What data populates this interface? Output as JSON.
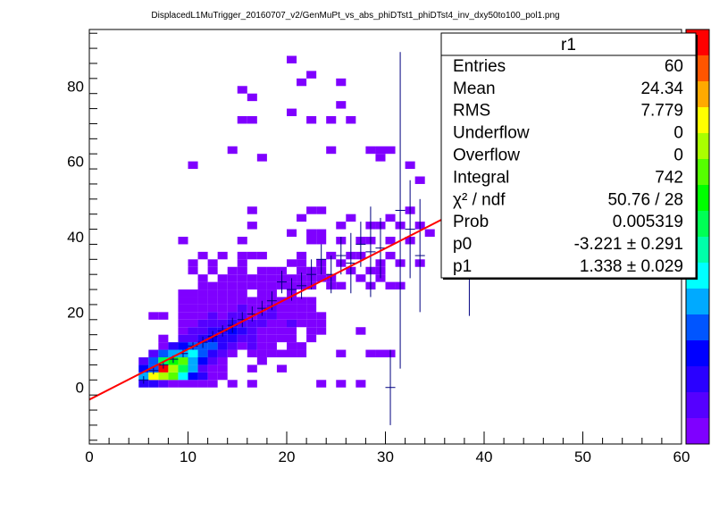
{
  "title": "DisplacedL1MuTrigger_20160707_v2/GenMuPt_vs_abs_phiDTst1_phiDTst4_inv_dxy50to100_pol1.png",
  "stats": {
    "name": "r1",
    "rows": [
      {
        "label": "Entries",
        "value": "60"
      },
      {
        "label": "Mean",
        "value": "24.34"
      },
      {
        "label": "RMS",
        "value": "7.779"
      },
      {
        "label": "Underflow",
        "value": "0"
      },
      {
        "label": "Overflow",
        "value": "0"
      },
      {
        "label": "Integral",
        "value": "742"
      },
      {
        "label": "χ² / ndf",
        "value": "50.76 / 28"
      },
      {
        "label": "Prob",
        "value": "0.005319"
      },
      {
        "label": "p0",
        "value": "-3.221 ± 0.291"
      },
      {
        "label": "p1",
        "value": "1.338 ± 0.029"
      }
    ]
  },
  "colors": {
    "palette": [
      "#7f00ff",
      "#5500ff",
      "#2a00ff",
      "#0000ff",
      "#0055ff",
      "#00aaff",
      "#00ffff",
      "#00ffaa",
      "#00ff55",
      "#00ff00",
      "#55ff00",
      "#aaff00",
      "#ffff00",
      "#ffaa00",
      "#ff5500",
      "#ff0000"
    ],
    "fit": "#ff0000",
    "profile": "#000080"
  },
  "chart_data": {
    "type": "heatmap",
    "title": "DisplacedL1MuTrigger_20160707_v2/GenMuPt_vs_abs_phiDTst1_phiDTst4_inv_dxy50to100_pol1.png",
    "xlabel": "",
    "ylabel": "",
    "xlim": [
      0,
      60
    ],
    "ylim": [
      -15,
      95
    ],
    "xticks": [
      0,
      10,
      20,
      30,
      40,
      50,
      60
    ],
    "yticks": [
      0,
      20,
      40,
      60,
      80
    ],
    "bin_width": [
      1,
      2
    ],
    "cells": [
      [
        5,
        1,
        3
      ],
      [
        6,
        1,
        3
      ],
      [
        7,
        1,
        2
      ],
      [
        8,
        1,
        1
      ],
      [
        9,
        1,
        1
      ],
      [
        10,
        1,
        1
      ],
      [
        11,
        1,
        1
      ],
      [
        12,
        1,
        1
      ],
      [
        14,
        1,
        1
      ],
      [
        16,
        1,
        1
      ],
      [
        23,
        1,
        1
      ],
      [
        25,
        1,
        1
      ],
      [
        27,
        1,
        1
      ],
      [
        5,
        3,
        6
      ],
      [
        6,
        3,
        12
      ],
      [
        7,
        3,
        11
      ],
      [
        8,
        3,
        10
      ],
      [
        9,
        3,
        7
      ],
      [
        10,
        3,
        4
      ],
      [
        11,
        3,
        3
      ],
      [
        12,
        3,
        1
      ],
      [
        13,
        3,
        1
      ],
      [
        5,
        5,
        4
      ],
      [
        6,
        5,
        8
      ],
      [
        7,
        5,
        15
      ],
      [
        8,
        5,
        11
      ],
      [
        9,
        5,
        8
      ],
      [
        10,
        5,
        6
      ],
      [
        11,
        5,
        2
      ],
      [
        12,
        5,
        1
      ],
      [
        13,
        5,
        1
      ],
      [
        16,
        5,
        1
      ],
      [
        19,
        5,
        1
      ],
      [
        5,
        7,
        2
      ],
      [
        6,
        5,
        5
      ],
      [
        6,
        7,
        5
      ],
      [
        7,
        7,
        8
      ],
      [
        8,
        7,
        9
      ],
      [
        9,
        7,
        10
      ],
      [
        10,
        7,
        6
      ],
      [
        11,
        7,
        4
      ],
      [
        12,
        7,
        2
      ],
      [
        13,
        7,
        1
      ],
      [
        17,
        7,
        1
      ],
      [
        6,
        9,
        2
      ],
      [
        7,
        9,
        5
      ],
      [
        8,
        9,
        6
      ],
      [
        9,
        9,
        6
      ],
      [
        10,
        9,
        7
      ],
      [
        11,
        9,
        5
      ],
      [
        12,
        9,
        3
      ],
      [
        13,
        9,
        2
      ],
      [
        14,
        9,
        1
      ],
      [
        16,
        9,
        1
      ],
      [
        17,
        9,
        1
      ],
      [
        18,
        9,
        1
      ],
      [
        19,
        9,
        1
      ],
      [
        20,
        9,
        1
      ],
      [
        21,
        9,
        1
      ],
      [
        25,
        9,
        1
      ],
      [
        28,
        9,
        1
      ],
      [
        29,
        9,
        1
      ],
      [
        30,
        9,
        1
      ],
      [
        7,
        11,
        1
      ],
      [
        8,
        11,
        3
      ],
      [
        9,
        11,
        4
      ],
      [
        10,
        11,
        5
      ],
      [
        11,
        11,
        5
      ],
      [
        12,
        11,
        5
      ],
      [
        13,
        11,
        3
      ],
      [
        14,
        11,
        2
      ],
      [
        15,
        11,
        1
      ],
      [
        16,
        11,
        2
      ],
      [
        17,
        11,
        1
      ],
      [
        18,
        11,
        1
      ],
      [
        20,
        11,
        1
      ],
      [
        21,
        11,
        1
      ],
      [
        7,
        13,
        1
      ],
      [
        9,
        13,
        2
      ],
      [
        10,
        13,
        2
      ],
      [
        11,
        13,
        3
      ],
      [
        12,
        13,
        4
      ],
      [
        13,
        13,
        3
      ],
      [
        14,
        13,
        3
      ],
      [
        15,
        13,
        2
      ],
      [
        16,
        13,
        2
      ],
      [
        17,
        13,
        1
      ],
      [
        18,
        13,
        1
      ],
      [
        19,
        13,
        1
      ],
      [
        20,
        13,
        1
      ],
      [
        22,
        13,
        1
      ],
      [
        9,
        15,
        1
      ],
      [
        10,
        15,
        2
      ],
      [
        11,
        15,
        2
      ],
      [
        12,
        15,
        3
      ],
      [
        13,
        15,
        3
      ],
      [
        14,
        15,
        4
      ],
      [
        15,
        15,
        3
      ],
      [
        16,
        15,
        2
      ],
      [
        17,
        15,
        1
      ],
      [
        18,
        15,
        1
      ],
      [
        19,
        15,
        1
      ],
      [
        20,
        15,
        1
      ],
      [
        22,
        15,
        1
      ],
      [
        23,
        15,
        1
      ],
      [
        27,
        15,
        1
      ],
      [
        6,
        19,
        1
      ],
      [
        7,
        19,
        1
      ],
      [
        9,
        17,
        1
      ],
      [
        10,
        17,
        1
      ],
      [
        11,
        17,
        2
      ],
      [
        12,
        17,
        2
      ],
      [
        13,
        17,
        2
      ],
      [
        14,
        17,
        3
      ],
      [
        15,
        17,
        2
      ],
      [
        16,
        17,
        2
      ],
      [
        17,
        17,
        2
      ],
      [
        18,
        17,
        1
      ],
      [
        19,
        17,
        1
      ],
      [
        20,
        17,
        2
      ],
      [
        21,
        17,
        1
      ],
      [
        22,
        17,
        1
      ],
      [
        23,
        17,
        1
      ],
      [
        9,
        19,
        1
      ],
      [
        10,
        19,
        1
      ],
      [
        11,
        19,
        1
      ],
      [
        12,
        19,
        2
      ],
      [
        13,
        19,
        1
      ],
      [
        14,
        19,
        2
      ],
      [
        15,
        19,
        2
      ],
      [
        16,
        19,
        1
      ],
      [
        17,
        19,
        2
      ],
      [
        18,
        19,
        2
      ],
      [
        19,
        19,
        1
      ],
      [
        20,
        19,
        1
      ],
      [
        21,
        19,
        1
      ],
      [
        22,
        19,
        1
      ],
      [
        23,
        19,
        1
      ],
      [
        9,
        21,
        1
      ],
      [
        10,
        21,
        1
      ],
      [
        11,
        21,
        1
      ],
      [
        12,
        21,
        1
      ],
      [
        13,
        21,
        1
      ],
      [
        14,
        21,
        1
      ],
      [
        15,
        21,
        2
      ],
      [
        16,
        21,
        1
      ],
      [
        17,
        21,
        1
      ],
      [
        18,
        21,
        2
      ],
      [
        19,
        21,
        1
      ],
      [
        20,
        21,
        1
      ],
      [
        21,
        21,
        1
      ],
      [
        22,
        21,
        1
      ],
      [
        9,
        23,
        1
      ],
      [
        10,
        23,
        1
      ],
      [
        11,
        23,
        1
      ],
      [
        12,
        23,
        1
      ],
      [
        13,
        23,
        1
      ],
      [
        14,
        23,
        1
      ],
      [
        15,
        23,
        1
      ],
      [
        16,
        23,
        1
      ],
      [
        17,
        23,
        1
      ],
      [
        18,
        23,
        1
      ],
      [
        19,
        23,
        1
      ],
      [
        20,
        23,
        1
      ],
      [
        21,
        23,
        1
      ],
      [
        22,
        23,
        1
      ],
      [
        9,
        25,
        1
      ],
      [
        10,
        25,
        1
      ],
      [
        11,
        25,
        1
      ],
      [
        12,
        25,
        1
      ],
      [
        13,
        25,
        1
      ],
      [
        14,
        25,
        1
      ],
      [
        15,
        25,
        1
      ],
      [
        17,
        25,
        1
      ],
      [
        18,
        25,
        1
      ],
      [
        20,
        25,
        1
      ],
      [
        11,
        27,
        1
      ],
      [
        12,
        27,
        1
      ],
      [
        13,
        27,
        1
      ],
      [
        14,
        27,
        1
      ],
      [
        15,
        27,
        1
      ],
      [
        16,
        27,
        1
      ],
      [
        17,
        27,
        1
      ],
      [
        18,
        27,
        1
      ],
      [
        19,
        27,
        1
      ],
      [
        20,
        27,
        1
      ],
      [
        21,
        27,
        1
      ],
      [
        22,
        27,
        1
      ],
      [
        24,
        27,
        1
      ],
      [
        25,
        27,
        1
      ],
      [
        28,
        27,
        1
      ],
      [
        30,
        27,
        1
      ],
      [
        31,
        27,
        1
      ],
      [
        11,
        29,
        1
      ],
      [
        13,
        29,
        1
      ],
      [
        14,
        29,
        1
      ],
      [
        15,
        29,
        1
      ],
      [
        16,
        29,
        1
      ],
      [
        17,
        29,
        1
      ],
      [
        18,
        29,
        1
      ],
      [
        19,
        29,
        1
      ],
      [
        20,
        29,
        1
      ],
      [
        21,
        29,
        1
      ],
      [
        22,
        29,
        1
      ],
      [
        23,
        29,
        1
      ],
      [
        24,
        29,
        1
      ],
      [
        27,
        29,
        1
      ],
      [
        29,
        29,
        1
      ],
      [
        10,
        31,
        1
      ],
      [
        12,
        31,
        1
      ],
      [
        14,
        31,
        1
      ],
      [
        15,
        31,
        1
      ],
      [
        17,
        31,
        1
      ],
      [
        18,
        31,
        1
      ],
      [
        19,
        31,
        1
      ],
      [
        21,
        31,
        1
      ],
      [
        22,
        31,
        1
      ],
      [
        23,
        31,
        1
      ],
      [
        26,
        31,
        1
      ],
      [
        28,
        31,
        1
      ],
      [
        29,
        31,
        1
      ],
      [
        10,
        33,
        1
      ],
      [
        12,
        33,
        1
      ],
      [
        15,
        33,
        1
      ],
      [
        20,
        33,
        1
      ],
      [
        21,
        33,
        1
      ],
      [
        23,
        33,
        1
      ],
      [
        25,
        33,
        1
      ],
      [
        29,
        33,
        1
      ],
      [
        31,
        33,
        1
      ],
      [
        33,
        33,
        1
      ],
      [
        11,
        35,
        1
      ],
      [
        13,
        35,
        1
      ],
      [
        15,
        35,
        1
      ],
      [
        16,
        35,
        1
      ],
      [
        17,
        35,
        1
      ],
      [
        21,
        35,
        1
      ],
      [
        24,
        35,
        1
      ],
      [
        26,
        35,
        1
      ],
      [
        27,
        35,
        1
      ],
      [
        30,
        35,
        1
      ],
      [
        9,
        39,
        1
      ],
      [
        15,
        39,
        1
      ],
      [
        22,
        39,
        1
      ],
      [
        23,
        39,
        1
      ],
      [
        25,
        39,
        1
      ],
      [
        27,
        39,
        1
      ],
      [
        28,
        39,
        1
      ],
      [
        30,
        39,
        1
      ],
      [
        32,
        39,
        1
      ],
      [
        16,
        43,
        1
      ],
      [
        20,
        41,
        1
      ],
      [
        22,
        41,
        1
      ],
      [
        23,
        41,
        1
      ],
      [
        25,
        43,
        1
      ],
      [
        28,
        43,
        1
      ],
      [
        29,
        43,
        1
      ],
      [
        31,
        43,
        1
      ],
      [
        33,
        43,
        1
      ],
      [
        34,
        41,
        1
      ],
      [
        16,
        47,
        1
      ],
      [
        21,
        45,
        1
      ],
      [
        22,
        47,
        1
      ],
      [
        23,
        47,
        1
      ],
      [
        26,
        45,
        1
      ],
      [
        30,
        45,
        1
      ],
      [
        32,
        47,
        1
      ],
      [
        10,
        59,
        1
      ],
      [
        17,
        61,
        1
      ],
      [
        29,
        61,
        1
      ],
      [
        32,
        59,
        1
      ],
      [
        33,
        55,
        1
      ],
      [
        28,
        63,
        1
      ],
      [
        29,
        63,
        1
      ],
      [
        30,
        63,
        1
      ],
      [
        14,
        63,
        1
      ],
      [
        24,
        63,
        1
      ],
      [
        22,
        71,
        1
      ],
      [
        24,
        71,
        1
      ],
      [
        26,
        71,
        1
      ],
      [
        20,
        73,
        1
      ],
      [
        25,
        75,
        1
      ],
      [
        15,
        71,
        1
      ],
      [
        16,
        71,
        1
      ],
      [
        15,
        79,
        1
      ],
      [
        21,
        81,
        1
      ],
      [
        22,
        83,
        1
      ],
      [
        25,
        81,
        1
      ],
      [
        20,
        87,
        1
      ],
      [
        16,
        77,
        1
      ]
    ],
    "profile": [
      {
        "x": 5.5,
        "y": 2,
        "ey": 1
      },
      {
        "x": 6.5,
        "y": 4.5,
        "ey": 1
      },
      {
        "x": 7.5,
        "y": 6,
        "ey": 1
      },
      {
        "x": 8.5,
        "y": 7.5,
        "ey": 1
      },
      {
        "x": 9.5,
        "y": 9,
        "ey": 1
      },
      {
        "x": 10.5,
        "y": 11,
        "ey": 1
      },
      {
        "x": 11.5,
        "y": 12,
        "ey": 1.5
      },
      {
        "x": 12.5,
        "y": 13.5,
        "ey": 1.5
      },
      {
        "x": 13.5,
        "y": 15,
        "ey": 1.5
      },
      {
        "x": 14.5,
        "y": 16.5,
        "ey": 2
      },
      {
        "x": 15.5,
        "y": 18,
        "ey": 2
      },
      {
        "x": 16.5,
        "y": 19.5,
        "ey": 2
      },
      {
        "x": 17.5,
        "y": 21,
        "ey": 2
      },
      {
        "x": 18.5,
        "y": 23,
        "ey": 2.5
      },
      {
        "x": 19.5,
        "y": 28,
        "ey": 3
      },
      {
        "x": 20.5,
        "y": 26,
        "ey": 3
      },
      {
        "x": 21.5,
        "y": 27,
        "ey": 3.5
      },
      {
        "x": 22.5,
        "y": 30,
        "ey": 4
      },
      {
        "x": 23.5,
        "y": 34,
        "ey": 4
      },
      {
        "x": 24.5,
        "y": 30,
        "ey": 5
      },
      {
        "x": 25.5,
        "y": 35,
        "ey": 5
      },
      {
        "x": 26.5,
        "y": 33,
        "ey": 8
      },
      {
        "x": 27.5,
        "y": 38,
        "ey": 6
      },
      {
        "x": 28.5,
        "y": 36,
        "ey": 12
      },
      {
        "x": 29.5,
        "y": 37,
        "ey": 8
      },
      {
        "x": 30.5,
        "y": 0,
        "ey": 10
      },
      {
        "x": 31.5,
        "y": 47,
        "ey": 42
      },
      {
        "x": 32.5,
        "y": 42,
        "ey": 13
      },
      {
        "x": 33.5,
        "y": 35,
        "ey": 15
      },
      {
        "x": 38.5,
        "y": 40,
        "ey": 21
      }
    ],
    "fit": {
      "p0": -3.221,
      "p1": 1.338
    }
  }
}
